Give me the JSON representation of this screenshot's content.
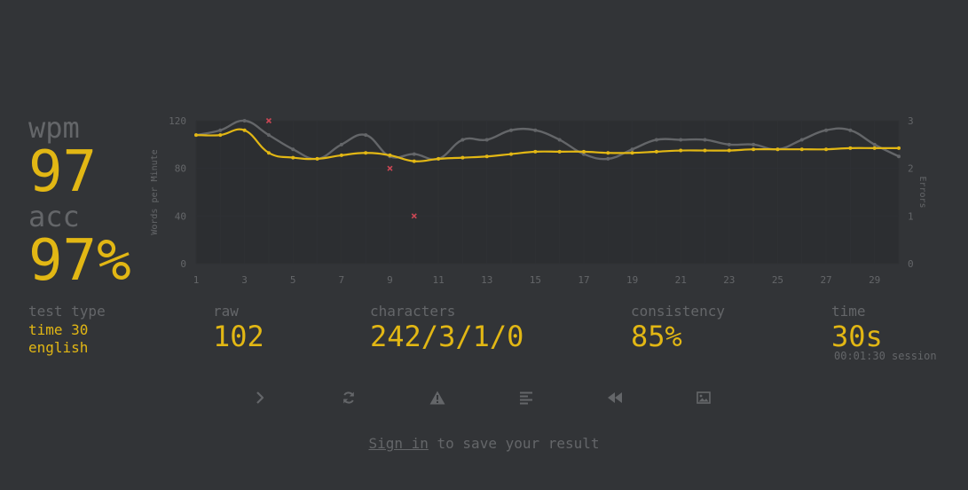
{
  "stats": {
    "wpm_label": "wpm",
    "wpm_value": "97",
    "acc_label": "acc",
    "acc_value": "97%"
  },
  "details": {
    "test_type_label": "test type",
    "test_type_mode": "time 30",
    "test_type_language": "english",
    "raw_label": "raw",
    "raw_value": "102",
    "characters_label": "characters",
    "characters_value": "242/3/1/0",
    "consistency_label": "consistency",
    "consistency_value": "85%",
    "time_label": "time",
    "time_value": "30s",
    "time_session": "00:01:30 session"
  },
  "actions": {
    "buttons": [
      {
        "name": "next-test-button",
        "icon": "chevron-right-icon"
      },
      {
        "name": "restart-test-button",
        "icon": "refresh-icon"
      },
      {
        "name": "report-button",
        "icon": "warning-icon"
      },
      {
        "name": "word-history-button",
        "icon": "align-left-icon"
      },
      {
        "name": "replay-button",
        "icon": "backward-icon"
      },
      {
        "name": "save-screenshot-button",
        "icon": "image-icon"
      }
    ]
  },
  "footer": {
    "sign_in": "Sign in",
    "rest": " to save your result"
  },
  "colors": {
    "background": "#323437",
    "accent": "#e2b714",
    "subtle": "#646669",
    "raw_line": "#646669",
    "error": "#ca4754",
    "plot_bg": "#2c2e31"
  },
  "chart_data": {
    "type": "line",
    "x": [
      1,
      2,
      3,
      4,
      5,
      6,
      7,
      8,
      9,
      10,
      11,
      12,
      13,
      14,
      15,
      16,
      17,
      18,
      19,
      20,
      21,
      22,
      23,
      24,
      25,
      26,
      27,
      28,
      29,
      30
    ],
    "x_ticks": [
      "1",
      "3",
      "5",
      "7",
      "9",
      "11",
      "13",
      "15",
      "17",
      "19",
      "21",
      "23",
      "25",
      "27",
      "29"
    ],
    "y_ticks_left": [
      "0",
      "40",
      "80",
      "120"
    ],
    "y_ticks_right": [
      "0",
      "1",
      "2",
      "3"
    ],
    "ylabel_left": "Words per Minute",
    "ylabel_right": "Errors",
    "ylim_left": [
      0,
      120
    ],
    "ylim_right": [
      0,
      3
    ],
    "grid": true,
    "series": [
      {
        "role": "wpm",
        "color": "#e2b714",
        "values": [
          108,
          108,
          112,
          93,
          89,
          88,
          91,
          93,
          91,
          86,
          88,
          89,
          90,
          92,
          94,
          94,
          94,
          93,
          93,
          94,
          95,
          95,
          95,
          96,
          96,
          96,
          96,
          97,
          97,
          97
        ]
      },
      {
        "role": "raw",
        "color": "#646669",
        "values": [
          108,
          112,
          120,
          108,
          96,
          88,
          100,
          108,
          90,
          92,
          88,
          104,
          104,
          112,
          112,
          104,
          92,
          88,
          96,
          104,
          104,
          104,
          100,
          100,
          96,
          104,
          112,
          112,
          100,
          90
        ]
      }
    ],
    "errors": [
      {
        "x": 4,
        "value": 3
      },
      {
        "x": 9,
        "value": 2
      },
      {
        "x": 10,
        "value": 1
      }
    ]
  }
}
